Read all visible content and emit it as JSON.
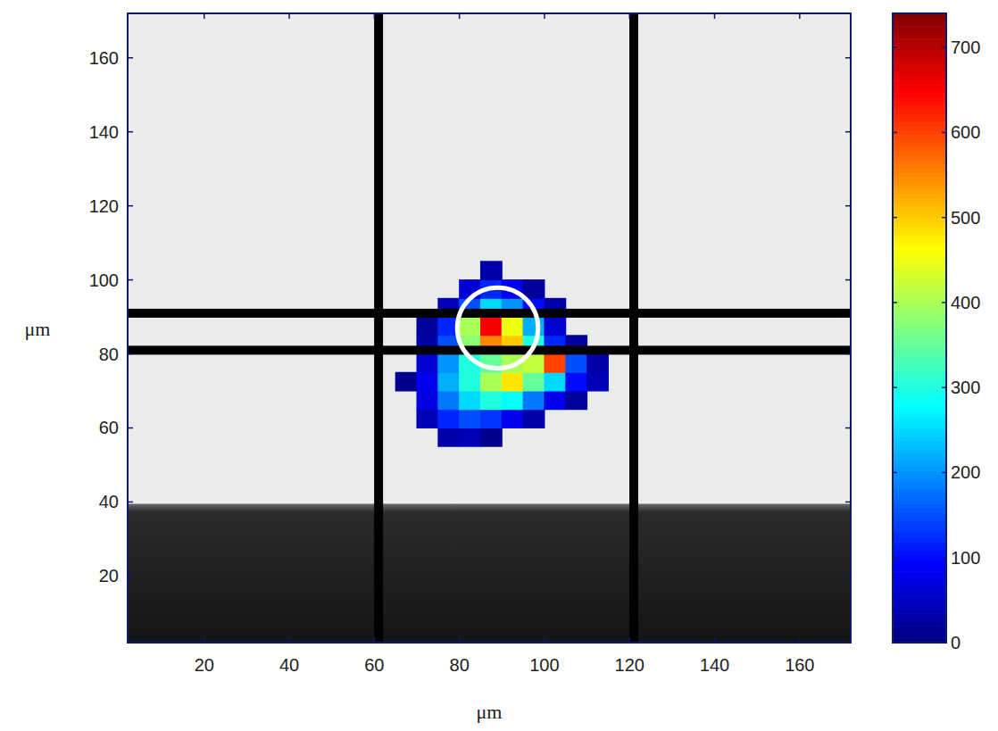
{
  "chart_data": {
    "type": "heatmap",
    "x_label": "μm",
    "y_label": "μm",
    "xlim": [
      2,
      172
    ],
    "ylim": [
      2,
      172
    ],
    "xticks": [
      20,
      40,
      60,
      80,
      100,
      120,
      140,
      160
    ],
    "yticks": [
      20,
      40,
      60,
      80,
      100,
      120,
      140,
      160
    ],
    "x": [
      67.5,
      72.5,
      77.5,
      82.5,
      87.5,
      92.5,
      97.5,
      102.5,
      107.5,
      112.5
    ],
    "y": [
      57.5,
      62.5,
      67.5,
      72.5,
      77.5,
      82.5,
      87.5,
      92.5,
      97.5,
      102.5
    ],
    "z": [
      [
        null,
        null,
        30,
        40,
        10,
        null,
        null,
        null,
        null,
        null
      ],
      [
        null,
        40,
        120,
        150,
        130,
        80,
        30,
        null,
        null,
        null
      ],
      [
        null,
        70,
        180,
        250,
        300,
        280,
        180,
        80,
        20,
        null
      ],
      [
        10,
        80,
        220,
        300,
        400,
        480,
        350,
        250,
        100,
        40
      ],
      [
        null,
        60,
        200,
        300,
        350,
        400,
        420,
        600,
        150,
        30
      ],
      [
        null,
        30,
        150,
        380,
        550,
        500,
        300,
        120,
        20,
        null
      ],
      [
        null,
        20,
        120,
        400,
        650,
        450,
        220,
        60,
        null,
        null
      ],
      [
        null,
        null,
        40,
        150,
        250,
        200,
        100,
        30,
        null,
        null
      ],
      [
        null,
        null,
        null,
        60,
        120,
        80,
        20,
        null,
        null,
        null
      ],
      [
        null,
        null,
        null,
        null,
        30,
        null,
        null,
        null,
        null,
        null
      ]
    ],
    "zlim": [
      0,
      740
    ],
    "zticks": [
      0,
      100,
      200,
      300,
      400,
      500,
      600,
      700
    ],
    "image": {
      "edge_y": 39.5,
      "bars_x": [
        61,
        121
      ],
      "bars_y": [
        81,
        91
      ],
      "circle": {
        "x": 89,
        "y": 87,
        "r": 9.5
      }
    }
  }
}
